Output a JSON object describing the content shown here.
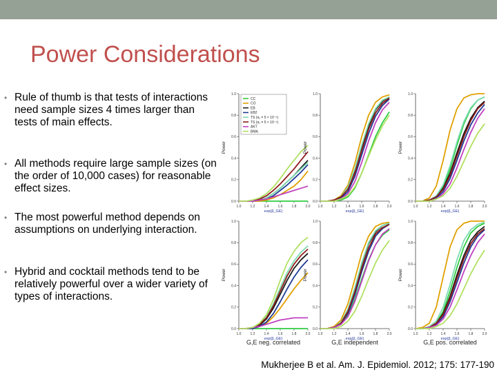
{
  "slide": {
    "title": "Power Considerations",
    "bullets": [
      "Rule of thumb is that tests of interactions need sample sizes 4 times larger than tests of main effects.",
      "All methods require large sample sizes (on the order of 10,000 cases) for reasonable effect sizes.",
      "The most powerful method depends on assumptions on underlying interaction.",
      "Hybrid and cocktail methods tend to be relatively powerful over a wider variety of types of interactions."
    ],
    "bullet_char": "•",
    "citation": "Mukherjee B et al. Am. J. Epidemiol. 2012; 175: 177-190"
  },
  "chart_data": {
    "type": "line",
    "layout": "2x3 grid",
    "ylabel": "Power",
    "xlabel": "exp(β_GE)",
    "x_ticks": [
      "1.0",
      "1.2",
      "1.4",
      "1.6",
      "1.8",
      "2.0"
    ],
    "y_ticks": [
      "0.0",
      "0.2",
      "0.4",
      "0.6",
      "0.8",
      "1.0"
    ],
    "xlim": [
      1.0,
      2.0
    ],
    "ylim": [
      0.0,
      1.0
    ],
    "column_titles": [
      "G,E neg. correlated",
      "G,E independent",
      "G,E pos. correlated"
    ],
    "legend": {
      "placement": "top-left of first panel",
      "entries": [
        "CC",
        "CO",
        "EB",
        "EB2",
        "TS (α₁ = 5 × 10⁻⁵)",
        "TS (α₁ = 5 × 10⁻⁴)",
        "AKT",
        "BMA"
      ]
    },
    "colors": [
      "#2ecc40",
      "#e0a000",
      "#1a1a1a",
      "#1f3a93",
      "#7cdcb0",
      "#8e1a1a",
      "#c040c0",
      "#b0e060"
    ],
    "x": [
      1.0,
      1.1,
      1.2,
      1.3,
      1.4,
      1.5,
      1.6,
      1.7,
      1.8,
      1.9,
      2.0
    ],
    "panels": [
      {
        "row": 1,
        "column": 1,
        "series": [
          {
            "values": [
              0.0,
              0.0,
              0.0,
              0.0,
              0.0,
              0.0,
              0.0,
              0.0,
              0.0,
              0.0,
              0.0
            ]
          },
          {
            "values": [
              0.0,
              0.0,
              0.0,
              0.0,
              0.01,
              0.03,
              0.06,
              0.1,
              0.14,
              0.2,
              0.28
            ]
          },
          {
            "values": [
              0.0,
              0.0,
              0.0,
              0.01,
              0.03,
              0.07,
              0.12,
              0.18,
              0.24,
              0.31,
              0.38
            ]
          },
          {
            "values": [
              0.0,
              0.0,
              0.0,
              0.01,
              0.02,
              0.05,
              0.1,
              0.15,
              0.21,
              0.27,
              0.34
            ]
          },
          {
            "values": [
              0.0,
              0.0,
              0.0,
              0.01,
              0.03,
              0.07,
              0.12,
              0.18,
              0.24,
              0.3,
              0.36
            ]
          },
          {
            "values": [
              0.0,
              0.0,
              0.0,
              0.02,
              0.05,
              0.1,
              0.16,
              0.23,
              0.3,
              0.38,
              0.46
            ]
          },
          {
            "values": [
              0.0,
              0.0,
              0.0,
              0.01,
              0.02,
              0.04,
              0.06,
              0.08,
              0.1,
              0.12,
              0.14
            ]
          },
          {
            "values": [
              0.0,
              0.0,
              0.01,
              0.03,
              0.07,
              0.13,
              0.21,
              0.3,
              0.38,
              0.46,
              0.52
            ]
          }
        ]
      },
      {
        "row": 1,
        "column": 2,
        "series": [
          {
            "values": [
              0.0,
              0.0,
              0.0,
              0.01,
              0.04,
              0.12,
              0.26,
              0.43,
              0.6,
              0.73,
              0.83
            ]
          },
          {
            "values": [
              0.0,
              0.0,
              0.01,
              0.05,
              0.15,
              0.35,
              0.6,
              0.8,
              0.92,
              0.97,
              0.99
            ]
          },
          {
            "values": [
              0.0,
              0.0,
              0.01,
              0.04,
              0.12,
              0.28,
              0.5,
              0.7,
              0.85,
              0.93,
              0.97
            ]
          },
          {
            "values": [
              0.0,
              0.0,
              0.0,
              0.03,
              0.09,
              0.23,
              0.43,
              0.63,
              0.79,
              0.89,
              0.95
            ]
          },
          {
            "values": [
              0.0,
              0.0,
              0.01,
              0.04,
              0.13,
              0.3,
              0.52,
              0.72,
              0.86,
              0.94,
              0.97
            ]
          },
          {
            "values": [
              0.0,
              0.0,
              0.01,
              0.04,
              0.11,
              0.26,
              0.47,
              0.67,
              0.82,
              0.91,
              0.96
            ]
          },
          {
            "values": [
              0.0,
              0.0,
              0.0,
              0.02,
              0.07,
              0.18,
              0.36,
              0.56,
              0.73,
              0.85,
              0.92
            ]
          },
          {
            "values": [
              0.0,
              0.0,
              0.0,
              0.02,
              0.05,
              0.13,
              0.26,
              0.42,
              0.57,
              0.7,
              0.8
            ]
          }
        ]
      },
      {
        "row": 1,
        "column": 3,
        "series": [
          {
            "values": [
              0.0,
              0.0,
              0.01,
              0.04,
              0.13,
              0.3,
              0.52,
              0.72,
              0.86,
              0.94,
              0.97
            ]
          },
          {
            "values": [
              0.0,
              0.0,
              0.03,
              0.14,
              0.38,
              0.66,
              0.86,
              0.96,
              0.99,
              1.0,
              1.0
            ]
          },
          {
            "values": [
              0.0,
              0.0,
              0.01,
              0.04,
              0.12,
              0.26,
              0.45,
              0.63,
              0.77,
              0.87,
              0.93
            ]
          },
          {
            "values": [
              0.0,
              0.0,
              0.0,
              0.03,
              0.09,
              0.21,
              0.38,
              0.56,
              0.71,
              0.82,
              0.9
            ]
          },
          {
            "values": [
              0.0,
              0.0,
              0.01,
              0.05,
              0.15,
              0.33,
              0.55,
              0.74,
              0.87,
              0.94,
              0.97
            ]
          },
          {
            "values": [
              0.0,
              0.0,
              0.01,
              0.04,
              0.11,
              0.24,
              0.42,
              0.6,
              0.75,
              0.86,
              0.92
            ]
          },
          {
            "values": [
              0.0,
              0.0,
              0.0,
              0.02,
              0.07,
              0.16,
              0.31,
              0.48,
              0.64,
              0.77,
              0.86
            ]
          },
          {
            "values": [
              0.0,
              0.0,
              0.0,
              0.02,
              0.05,
              0.12,
              0.23,
              0.37,
              0.51,
              0.63,
              0.72
            ]
          }
        ]
      },
      {
        "row": 2,
        "column": 1,
        "series": [
          {
            "values": [
              0.0,
              0.0,
              0.0,
              0.0,
              0.0,
              0.0,
              0.0,
              0.0,
              0.0,
              0.0,
              0.0
            ]
          },
          {
            "values": [
              0.0,
              0.0,
              0.0,
              0.02,
              0.05,
              0.11,
              0.19,
              0.28,
              0.37,
              0.45,
              0.52
            ]
          },
          {
            "values": [
              0.0,
              0.0,
              0.01,
              0.03,
              0.09,
              0.19,
              0.32,
              0.45,
              0.56,
              0.64,
              0.7
            ]
          },
          {
            "values": [
              0.0,
              0.0,
              0.0,
              0.02,
              0.06,
              0.14,
              0.25,
              0.37,
              0.48,
              0.57,
              0.64
            ]
          },
          {
            "values": [
              0.0,
              0.0,
              0.01,
              0.04,
              0.11,
              0.23,
              0.38,
              0.52,
              0.63,
              0.71,
              0.77
            ]
          },
          {
            "values": [
              0.0,
              0.0,
              0.01,
              0.04,
              0.1,
              0.21,
              0.35,
              0.49,
              0.6,
              0.68,
              0.74
            ]
          },
          {
            "values": [
              0.0,
              0.0,
              0.01,
              0.02,
              0.04,
              0.06,
              0.08,
              0.09,
              0.1,
              0.1,
              0.1
            ]
          },
          {
            "values": [
              0.0,
              0.0,
              0.01,
              0.05,
              0.13,
              0.27,
              0.45,
              0.61,
              0.72,
              0.8,
              0.85
            ]
          }
        ]
      },
      {
        "row": 2,
        "column": 2,
        "series": [
          {
            "values": [
              0.0,
              0.0,
              0.01,
              0.04,
              0.12,
              0.27,
              0.46,
              0.64,
              0.78,
              0.87,
              0.92
            ]
          },
          {
            "values": [
              0.0,
              0.0,
              0.02,
              0.08,
              0.23,
              0.46,
              0.7,
              0.86,
              0.95,
              0.98,
              0.99
            ]
          },
          {
            "values": [
              0.0,
              0.0,
              0.01,
              0.06,
              0.17,
              0.37,
              0.6,
              0.79,
              0.9,
              0.96,
              0.98
            ]
          },
          {
            "values": [
              0.0,
              0.0,
              0.01,
              0.05,
              0.14,
              0.31,
              0.53,
              0.72,
              0.86,
              0.93,
              0.97
            ]
          },
          {
            "values": [
              0.0,
              0.0,
              0.01,
              0.06,
              0.18,
              0.38,
              0.61,
              0.8,
              0.91,
              0.96,
              0.98
            ]
          },
          {
            "values": [
              0.0,
              0.0,
              0.01,
              0.05,
              0.16,
              0.34,
              0.56,
              0.75,
              0.88,
              0.94,
              0.97
            ]
          },
          {
            "values": [
              0.0,
              0.0,
              0.01,
              0.04,
              0.11,
              0.25,
              0.44,
              0.63,
              0.78,
              0.88,
              0.93
            ]
          },
          {
            "values": [
              0.0,
              0.0,
              0.0,
              0.02,
              0.07,
              0.16,
              0.3,
              0.46,
              0.61,
              0.73,
              0.82
            ]
          }
        ]
      },
      {
        "row": 2,
        "column": 3,
        "series": [
          {
            "values": [
              0.0,
              0.0,
              0.01,
              0.05,
              0.16,
              0.35,
              0.57,
              0.76,
              0.89,
              0.95,
              0.98
            ]
          },
          {
            "values": [
              0.0,
              0.01,
              0.05,
              0.2,
              0.48,
              0.76,
              0.92,
              0.98,
              1.0,
              1.0,
              1.0
            ]
          },
          {
            "values": [
              0.0,
              0.0,
              0.01,
              0.05,
              0.14,
              0.3,
              0.5,
              0.68,
              0.82,
              0.9,
              0.95
            ]
          },
          {
            "values": [
              0.0,
              0.0,
              0.01,
              0.04,
              0.11,
              0.25,
              0.43,
              0.61,
              0.76,
              0.86,
              0.92
            ]
          },
          {
            "values": [
              0.0,
              0.0,
              0.02,
              0.07,
              0.2,
              0.41,
              0.64,
              0.82,
              0.92,
              0.97,
              0.99
            ]
          },
          {
            "values": [
              0.0,
              0.0,
              0.01,
              0.05,
              0.13,
              0.28,
              0.47,
              0.65,
              0.79,
              0.88,
              0.93
            ]
          },
          {
            "values": [
              0.0,
              0.0,
              0.01,
              0.03,
              0.09,
              0.2,
              0.36,
              0.53,
              0.68,
              0.8,
              0.88
            ]
          },
          {
            "values": [
              0.0,
              0.0,
              0.0,
              0.02,
              0.05,
              0.12,
              0.23,
              0.37,
              0.51,
              0.63,
              0.73
            ]
          }
        ]
      }
    ]
  }
}
